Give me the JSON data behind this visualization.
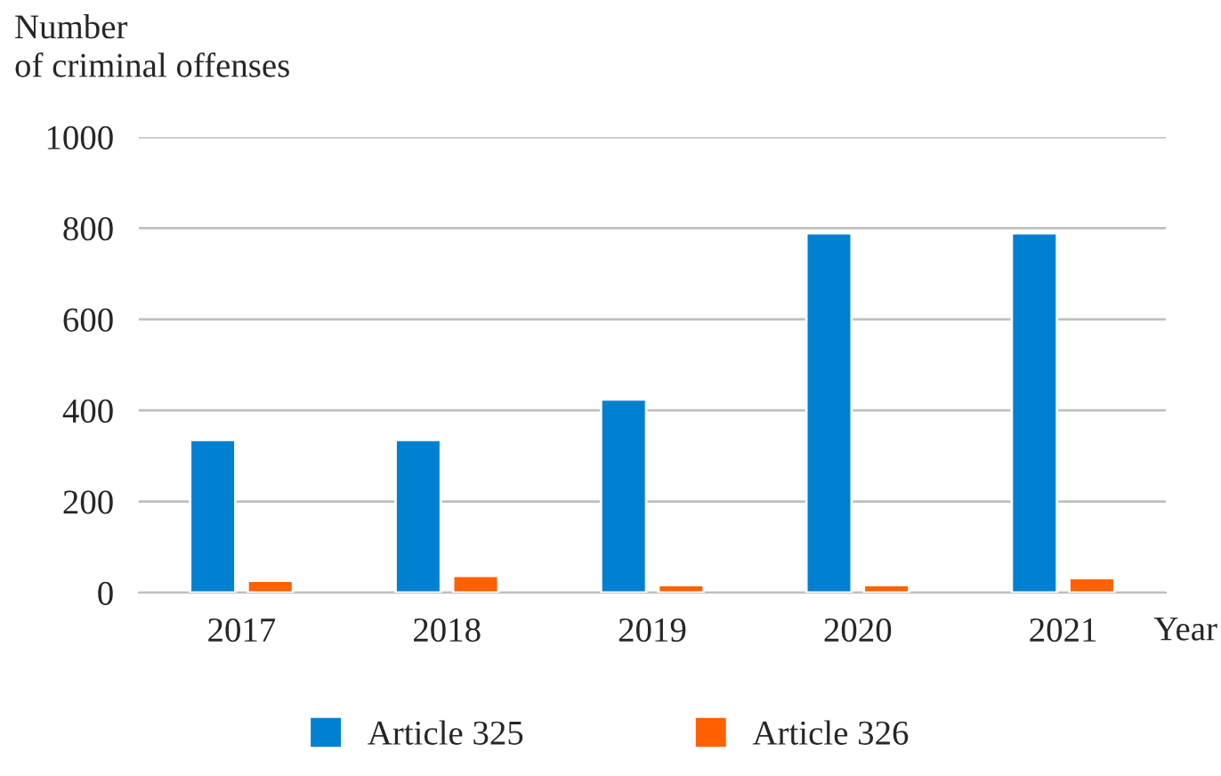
{
  "chart_data": {
    "type": "bar",
    "ylabel": "Number\nof criminal offenses",
    "xlabel": "Year",
    "categories": [
      "2017",
      "2018",
      "2019",
      "2020",
      "2021"
    ],
    "series": [
      {
        "name": "Article 325",
        "color": "#0080d0",
        "values": [
          335,
          335,
          424,
          789,
          789
        ]
      },
      {
        "name": "Article 326",
        "color": "#ff6000",
        "values": [
          26,
          37,
          17,
          17,
          32
        ]
      }
    ],
    "ylim": [
      0,
      1000
    ],
    "yticks": [
      0,
      200,
      400,
      600,
      800,
      1000
    ],
    "grid": "y",
    "legend": "bottom"
  }
}
